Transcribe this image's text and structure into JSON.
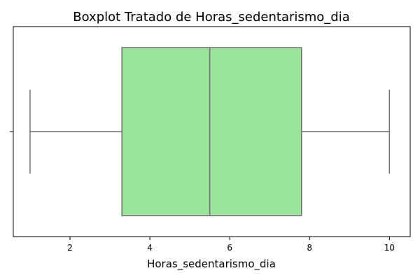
{
  "chart_data": {
    "type": "boxplot",
    "orientation": "horizontal",
    "title": "Boxplot Tratado de Horas_sedentarismo_dia",
    "xlabel": "Horas_sedentarismo_dia",
    "ylabel": "",
    "xlim": [
      0.58,
      10.52
    ],
    "xticks": [
      2,
      4,
      6,
      8,
      10
    ],
    "grid": false,
    "box": {
      "whisker_low": 1.0,
      "q1": 3.3,
      "median": 5.5,
      "q3": 7.8,
      "whisker_high": 10.0
    },
    "colors": {
      "box_fill": "#9be29b",
      "line": "#6f6f6f",
      "axes": "#000000"
    }
  }
}
